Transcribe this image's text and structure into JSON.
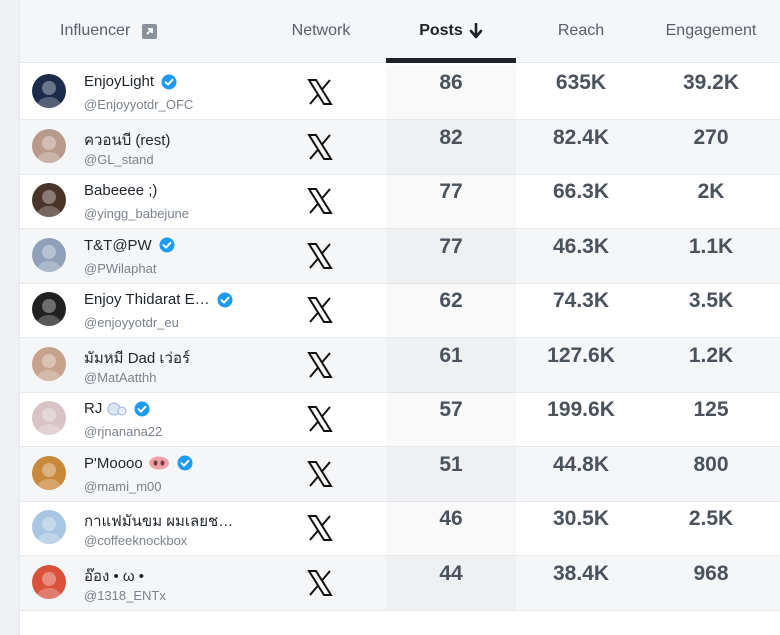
{
  "columns": {
    "influencer": "Influencer",
    "network": "Network",
    "posts": "Posts",
    "reach": "Reach",
    "engagement": "Engagement"
  },
  "sort": {
    "column": "posts",
    "direction": "descending"
  },
  "rows": [
    {
      "name": "EnjoyLight",
      "handle": "@Enjoyyotdr_OFC",
      "verified": true,
      "network": "x-logo-icon",
      "posts": "86",
      "reach": "635K",
      "engagement": "39.2K",
      "avatar_color": "#1d2b4a"
    },
    {
      "name": "ควอนบี (rest)",
      "handle": "@GL_stand",
      "verified": false,
      "network": "x-logo-icon",
      "posts": "82",
      "reach": "82.4K",
      "engagement": "270",
      "avatar_color": "#b89a8d"
    },
    {
      "name": "Babeeee ;)",
      "handle": "@yingg_babejune",
      "verified": false,
      "network": "x-logo-icon",
      "posts": "77",
      "reach": "66.3K",
      "engagement": "2K",
      "avatar_color": "#4a3328"
    },
    {
      "name": "T&T@PW",
      "handle": "@PWilaphat",
      "verified": true,
      "network": "x-logo-icon",
      "posts": "77",
      "reach": "46.3K",
      "engagement": "1.1K",
      "avatar_color": "#8fa0b8"
    },
    {
      "name": "Enjoy Thidarat E…",
      "handle": "@enjoyyotdr_eu",
      "verified": true,
      "network": "x-logo-icon",
      "posts": "62",
      "reach": "74.3K",
      "engagement": "3.5K",
      "avatar_color": "#202020"
    },
    {
      "name": "มัมหมี Dad เว่อร์",
      "handle": "@MatAatthh",
      "verified": false,
      "network": "x-logo-icon",
      "posts": "61",
      "reach": "127.6K",
      "engagement": "1.2K",
      "avatar_color": "#c7a38d"
    },
    {
      "name": "RJ",
      "handle": "@rjnanana22",
      "verified": true,
      "network": "x-logo-icon",
      "posts": "57",
      "reach": "199.6K",
      "engagement": "125",
      "avatar_color": "#d8c3c6",
      "emoji": "bubbles-icon"
    },
    {
      "name": "P'Moooo",
      "handle": "@mami_m00",
      "verified": true,
      "network": "x-logo-icon",
      "posts": "51",
      "reach": "44.8K",
      "engagement": "800",
      "avatar_color": "#c9893b",
      "emoji": "pig-nose-icon"
    },
    {
      "name": "กาแฟมันขม ผมเลยช…",
      "handle": "@coffeeknockbox",
      "verified": false,
      "network": "x-logo-icon",
      "posts": "46",
      "reach": "30.5K",
      "engagement": "2.5K",
      "avatar_color": "#a9c6e2"
    },
    {
      "name": "อ๊อง • ω •",
      "handle": "@1318_ENTx",
      "verified": false,
      "network": "x-logo-icon",
      "posts": "44",
      "reach": "38.4K",
      "engagement": "968",
      "avatar_color": "#d9503b"
    }
  ]
}
